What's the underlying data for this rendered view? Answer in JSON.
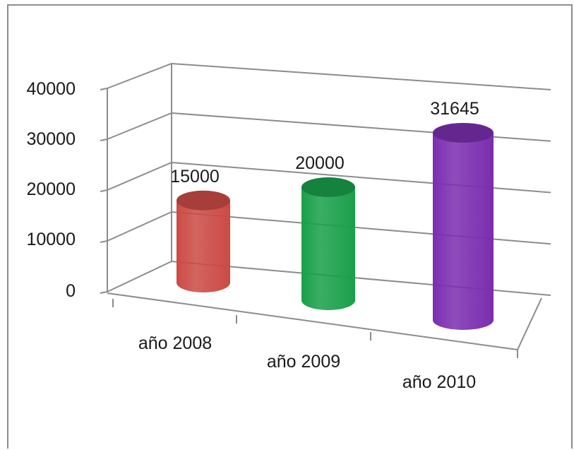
{
  "chart_data": {
    "type": "bar",
    "style": "3d-cylinder",
    "categories": [
      "año 2008",
      "año 2009",
      "año 2010"
    ],
    "values": [
      15000,
      20000,
      31645
    ],
    "data_labels": [
      "15000",
      "20000",
      "31645"
    ],
    "colors": [
      "#cc4b45",
      "#1aa04a",
      "#7a2fb0"
    ],
    "ylim": [
      0,
      40000
    ],
    "yticks": [
      "0",
      "10000",
      "20000",
      "30000",
      "40000"
    ],
    "grid": true,
    "title": "",
    "xlabel": "",
    "ylabel": ""
  }
}
